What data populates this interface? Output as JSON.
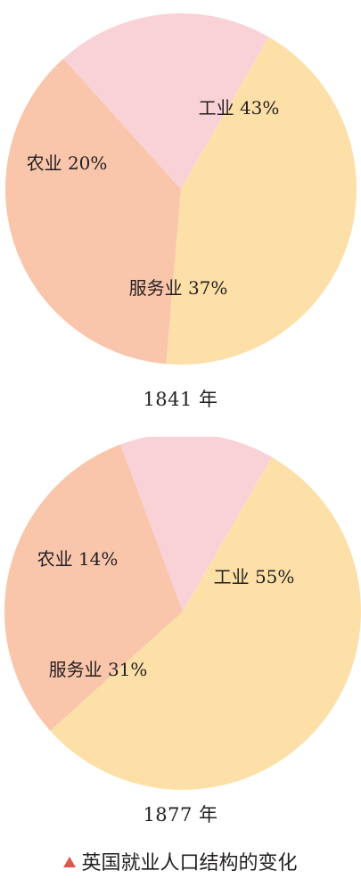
{
  "chart_data": [
    {
      "type": "pie",
      "title": "1841 年",
      "slices": [
        {
          "label": "工业",
          "value": 43,
          "text": "工业 43%",
          "color": "#fde0a8"
        },
        {
          "label": "服务业",
          "value": 37,
          "text": "服务业 37%",
          "color": "#f9c6ac"
        },
        {
          "label": "农业",
          "value": 20,
          "text": "农业 20%",
          "color": "#f9d2d8"
        }
      ]
    },
    {
      "type": "pie",
      "title": "1877 年",
      "slices": [
        {
          "label": "工业",
          "value": 55,
          "text": "工业 55%",
          "color": "#fde0a8"
        },
        {
          "label": "服务业",
          "value": 31,
          "text": "服务业 31%",
          "color": "#f9c6ac"
        },
        {
          "label": "农业",
          "value": 14,
          "text": "农业 14%",
          "color": "#f9d2d8"
        }
      ]
    }
  ],
  "caption": "英国就业人口结构的变化",
  "caption_marker_color": "#e2574c"
}
